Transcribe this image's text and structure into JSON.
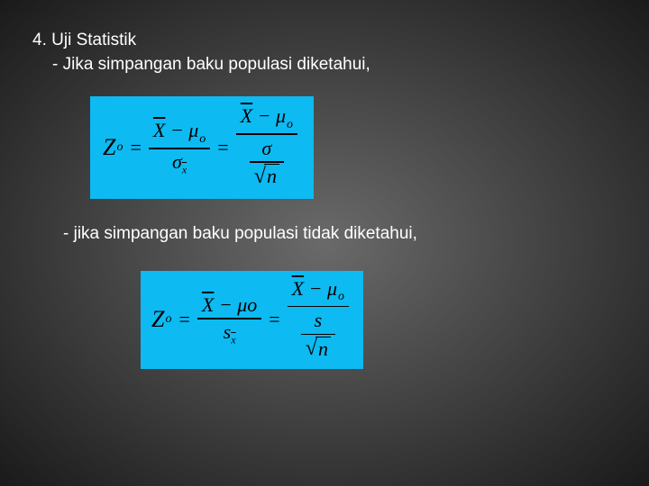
{
  "slide": {
    "heading_main": "4. Uji Statistik",
    "heading_sub": "- Jika simpangan baku populasi diketahui,",
    "text2": "- jika simpangan baku populasi tidak diketahui,",
    "formula1": {
      "lhs_var": "Z",
      "lhs_sub": "o",
      "frac1_num_x": "X",
      "frac1_num_minus": " − ",
      "frac1_num_mu": "μ",
      "frac1_num_mu_sub": "o",
      "frac1_den_sigma": "σ",
      "frac1_den_sigma_sub": "x",
      "frac2_num_x": "X",
      "frac2_num_minus": " − ",
      "frac2_num_mu": "μ",
      "frac2_num_mu_sub": "o",
      "frac2_den_sigma": "σ",
      "frac2_den_sqrt_n": "n"
    },
    "formula2": {
      "lhs_var": "Z",
      "lhs_sub": "o",
      "frac1_num_x": "X",
      "frac1_num_minus": " − ",
      "frac1_num_mu": "μo",
      "frac1_den_s": "s",
      "frac1_den_s_sub": "x",
      "frac2_num_x": "X",
      "frac2_num_minus": " − ",
      "frac2_num_mu": "μ",
      "frac2_num_mu_sub": "o",
      "frac2_den_s": "s",
      "frac2_den_sqrt_n": "n"
    },
    "colors": {
      "formula_bg": "#0dbaf2",
      "text_color": "#ffffff",
      "formula_text": "#000000"
    }
  }
}
